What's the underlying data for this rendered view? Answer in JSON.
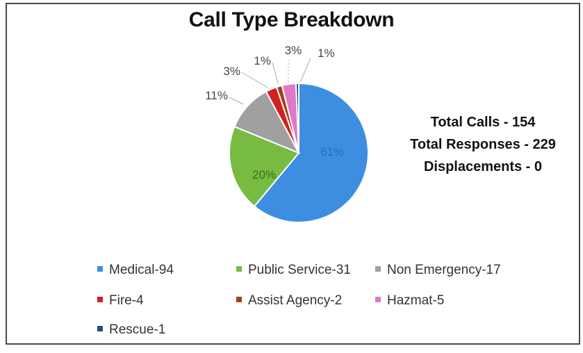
{
  "chart_data": {
    "type": "pie",
    "title": "Call Type Breakdown",
    "slices": [
      {
        "label": "Medical-94",
        "value": 94,
        "percent_label": "61%",
        "color": "#3d8ee0"
      },
      {
        "label": "Public Service-31",
        "value": 31,
        "percent_label": "20%",
        "color": "#77bb40"
      },
      {
        "label": "Non Emergency-17",
        "value": 17,
        "percent_label": "11%",
        "color": "#a0a0a0"
      },
      {
        "label": "Fire-4",
        "value": 4,
        "percent_label": "3%",
        "color": "#d42020"
      },
      {
        "label": "Assist Agency-2",
        "value": 2,
        "percent_label": "1%",
        "color": "#a0401a"
      },
      {
        "label": "Hazmat-5",
        "value": 5,
        "percent_label": "3%",
        "color": "#e07ac8"
      },
      {
        "label": "Rescue-1",
        "value": 1,
        "percent_label": "1%",
        "color": "#1f4e8c"
      }
    ],
    "legend_position": "bottom"
  },
  "stats": {
    "total_calls": "Total Calls - 154",
    "total_responses": "Total Responses - 229",
    "displacements": "Displacements - 0"
  }
}
